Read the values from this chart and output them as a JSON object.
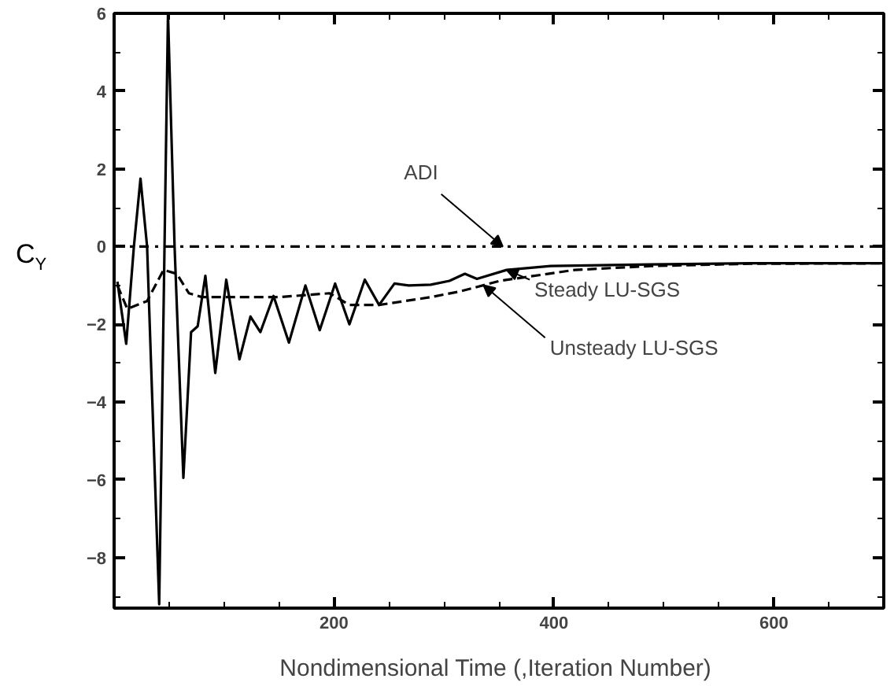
{
  "chart_data": {
    "type": "line",
    "xlabel": "Nondimensional Time  (,Iteration Number)",
    "ylabel": "C$_{Y}$",
    "xlim": [
      0,
      700
    ],
    "ylim": [
      -9.3,
      6
    ],
    "xticks": [
      200,
      400,
      600
    ],
    "yticks": [
      -8,
      -6,
      -4,
      -2,
      0,
      2,
      4,
      6
    ],
    "grid": false,
    "series": [
      {
        "name": "ADI",
        "color": "#000000",
        "line_style": "dashdot",
        "x": [
          0,
          700
        ],
        "values": [
          0,
          0
        ]
      },
      {
        "name": "Steady LU-SGS",
        "color": "#000000",
        "line_style": "solid",
        "x": [
          3,
          11,
          18,
          24,
          30,
          41,
          49,
          55,
          63,
          70,
          76,
          83,
          92,
          102,
          114,
          124,
          133,
          145,
          159,
          174,
          187,
          201,
          214,
          228,
          241,
          255,
          268,
          288,
          305,
          319,
          330,
          357,
          397,
          488,
          579,
          699
        ],
        "values": [
          -0.9,
          -2.5,
          0,
          1.75,
          0,
          -9.2,
          6,
          0,
          -5.95,
          -2.2,
          -2.05,
          -0.75,
          -3.25,
          -0.85,
          -2.9,
          -1.8,
          -2.2,
          -1.27,
          -2.47,
          -1.0,
          -2.15,
          -0.95,
          -2.0,
          -0.85,
          -1.5,
          -0.95,
          -1.0,
          -0.98,
          -0.88,
          -0.7,
          -0.83,
          -0.6,
          -0.5,
          -0.46,
          -0.43,
          -0.43
        ]
      },
      {
        "name": "Unsteady LU-SGS",
        "color": "#000000",
        "line_style": "dashed",
        "x": [
          3,
          12,
          30,
          45,
          57,
          68,
          80,
          150,
          196,
          214,
          241,
          288,
          315,
          351,
          419,
          488,
          579,
          699
        ],
        "values": [
          -1.0,
          -1.6,
          -1.4,
          -0.6,
          -0.7,
          -1.2,
          -1.3,
          -1.3,
          -1.2,
          -1.5,
          -1.5,
          -1.3,
          -1.15,
          -0.88,
          -0.6,
          -0.5,
          -0.44,
          -0.43
        ]
      }
    ]
  }
}
